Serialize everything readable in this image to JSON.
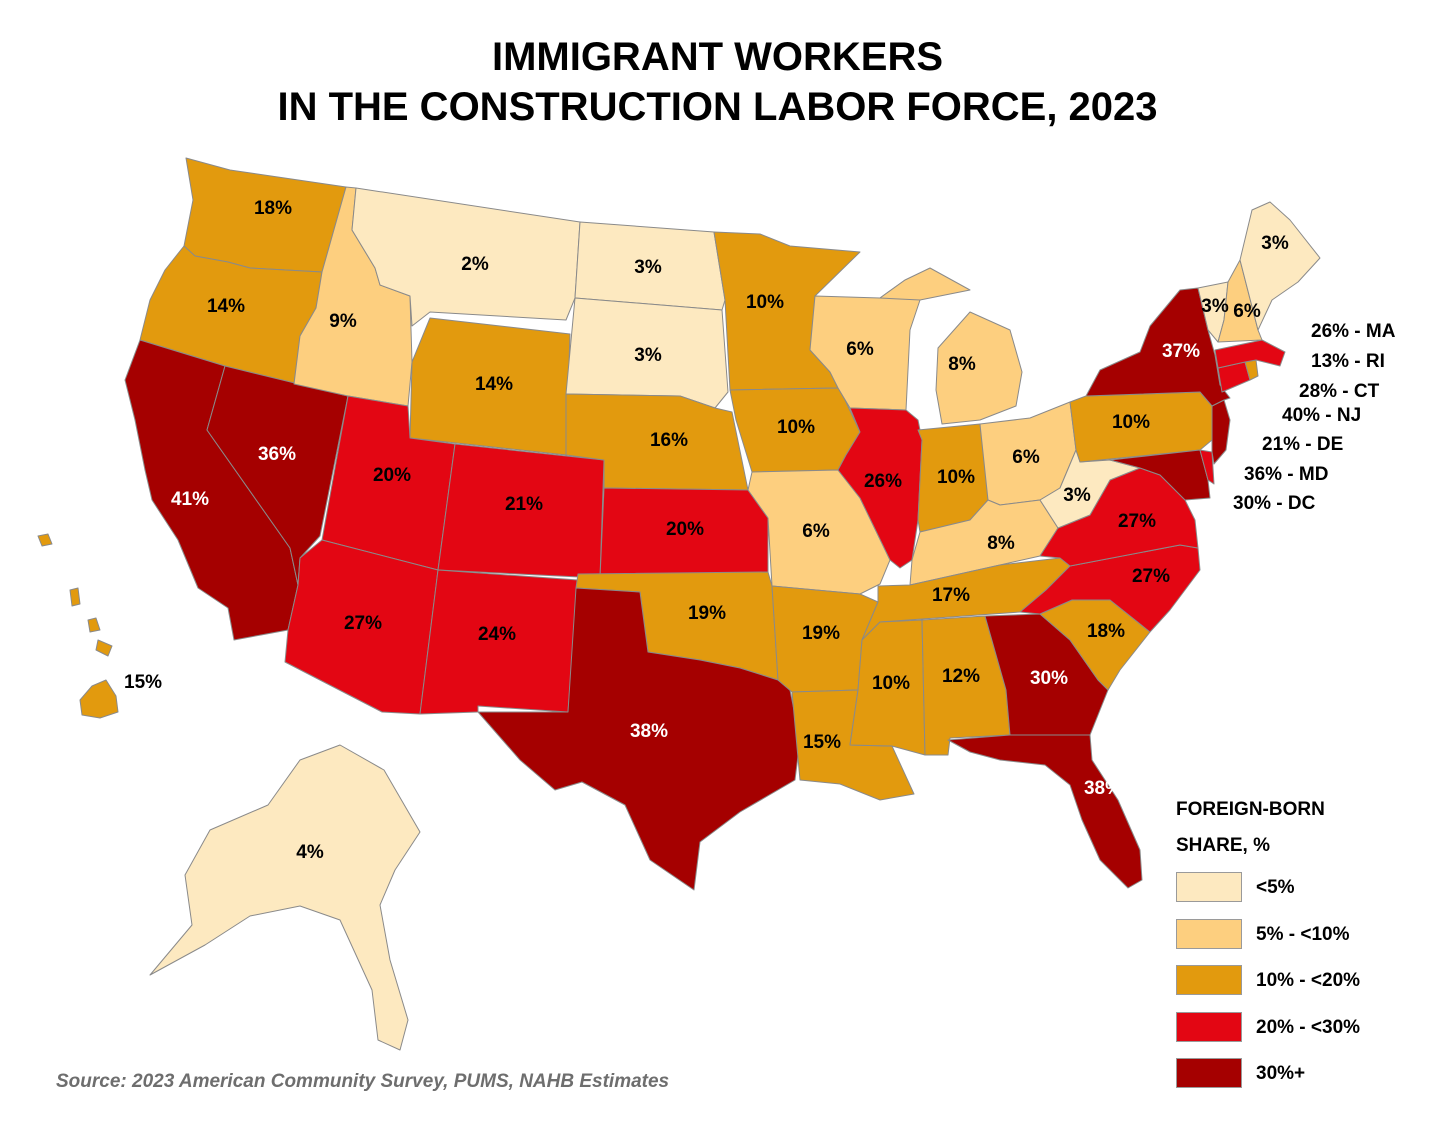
{
  "title": {
    "line1": "IMMIGRANT WORKERS",
    "line2": "IN THE CONSTRUCTION LABOR FORCE, 2023"
  },
  "legend": {
    "title_line1": "FOREIGN-BORN",
    "title_line2": "SHARE, %",
    "items": [
      {
        "label": "<5%",
        "color": "#fde9c0"
      },
      {
        "label": "5% - <10%",
        "color": "#fdcf7f"
      },
      {
        "label": "10% - <20%",
        "color": "#e29a0e"
      },
      {
        "label": "20% - <30%",
        "color": "#e30613"
      },
      {
        "label": "30%+",
        "color": "#a50000"
      }
    ]
  },
  "source": "Source: 2023 American Community Survey, PUMS, NAHB Estimates",
  "states": {
    "WA": {
      "value": "18%",
      "share": 18
    },
    "OR": {
      "value": "14%",
      "share": 14
    },
    "CA": {
      "value": "41%",
      "share": 41
    },
    "NV": {
      "value": "36%",
      "share": 36
    },
    "ID": {
      "value": "9%",
      "share": 9
    },
    "MT": {
      "value": "2%",
      "share": 2
    },
    "WY": {
      "value": "14%",
      "share": 14
    },
    "UT": {
      "value": "20%",
      "share": 20
    },
    "AZ": {
      "value": "27%",
      "share": 27
    },
    "CO": {
      "value": "21%",
      "share": 21
    },
    "NM": {
      "value": "24%",
      "share": 24
    },
    "ND": {
      "value": "3%",
      "share": 3
    },
    "SD": {
      "value": "3%",
      "share": 3
    },
    "NE": {
      "value": "16%",
      "share": 16
    },
    "KS": {
      "value": "20%",
      "share": 20
    },
    "OK": {
      "value": "19%",
      "share": 19
    },
    "TX": {
      "value": "38%",
      "share": 38
    },
    "MN": {
      "value": "10%",
      "share": 10
    },
    "IA": {
      "value": "10%",
      "share": 10
    },
    "MO": {
      "value": "6%",
      "share": 6
    },
    "AR": {
      "value": "19%",
      "share": 19
    },
    "LA": {
      "value": "15%",
      "share": 15
    },
    "WI": {
      "value": "6%",
      "share": 6
    },
    "IL": {
      "value": "26%",
      "share": 26
    },
    "MI": {
      "value": "8%",
      "share": 8
    },
    "IN": {
      "value": "10%",
      "share": 10
    },
    "OH": {
      "value": "6%",
      "share": 6
    },
    "KY": {
      "value": "8%",
      "share": 8
    },
    "TN": {
      "value": "17%",
      "share": 17
    },
    "MS": {
      "value": "10%",
      "share": 10
    },
    "AL": {
      "value": "12%",
      "share": 12
    },
    "GA": {
      "value": "30%",
      "share": 30
    },
    "FL": {
      "value": "38%",
      "share": 38
    },
    "SC": {
      "value": "18%",
      "share": 18
    },
    "NC": {
      "value": "27%",
      "share": 27
    },
    "VA": {
      "value": "27%",
      "share": 27
    },
    "WV": {
      "value": "3%",
      "share": 3
    },
    "PA": {
      "value": "10%",
      "share": 10
    },
    "NY": {
      "value": "37%",
      "share": 37
    },
    "VT": {
      "value": "3%",
      "share": 3
    },
    "NH": {
      "value": "6%",
      "share": 6
    },
    "ME": {
      "value": "3%",
      "share": 3
    },
    "AK": {
      "value": "4%",
      "share": 4
    },
    "HI": {
      "value": "15%",
      "share": 15
    },
    "MA": {
      "value": "26% - MA",
      "share": 26
    },
    "RI": {
      "value": "13% - RI",
      "share": 13
    },
    "CT": {
      "value": "28% - CT",
      "share": 28
    },
    "NJ": {
      "value": "40% - NJ",
      "share": 40
    },
    "DE": {
      "value": "21% - DE",
      "share": 21
    },
    "MD": {
      "value": "36% - MD",
      "share": 36
    },
    "DC": {
      "value": "30% - DC",
      "share": 30
    }
  }
}
